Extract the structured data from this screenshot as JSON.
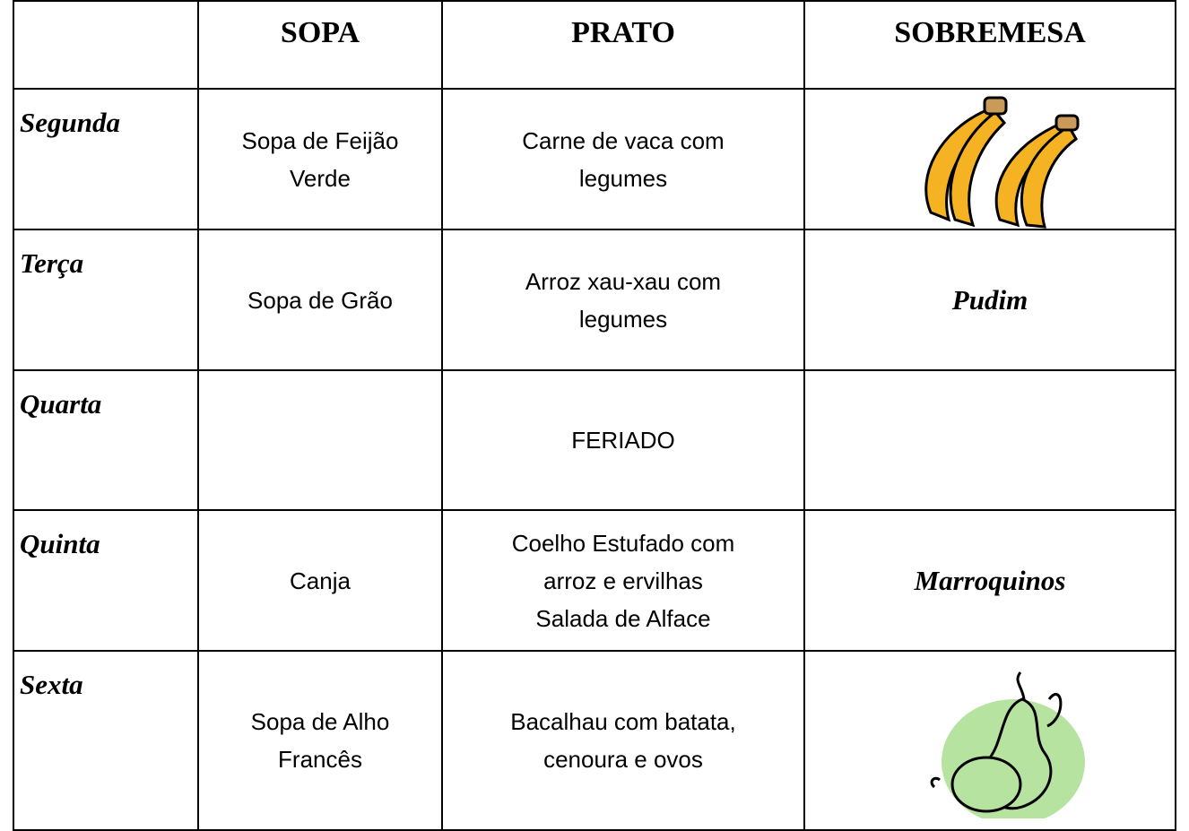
{
  "table": {
    "header": [
      "SOPA",
      "PRATO",
      "SOBREMESA"
    ],
    "rows": [
      {
        "day": "Segunda",
        "soup": [
          "Sopa de Feijão",
          "Verde"
        ],
        "main": [
          "Carne de vaca com",
          "legumes"
        ]
      },
      {
        "day": "Terça",
        "soup": [
          "Sopa de Grão"
        ],
        "main": [
          "Arroz xau-xau com",
          "legumes"
        ],
        "dessert": "Pudim"
      },
      {
        "day": "Quarta",
        "main": [
          "FERIADO"
        ]
      },
      {
        "day": "Quinta",
        "soup": [
          "Canja"
        ],
        "main": [
          "Coelho Estufado com",
          "arroz e ervilhas",
          "Salada de Alface"
        ],
        "dessert": "Marroquinos"
      },
      {
        "day": "Sexta",
        "soup": [
          "Sopa de Alho",
          "Francês"
        ],
        "main": [
          "Bacalhau com batata,",
          "cenoura e ovos"
        ]
      }
    ]
  }
}
